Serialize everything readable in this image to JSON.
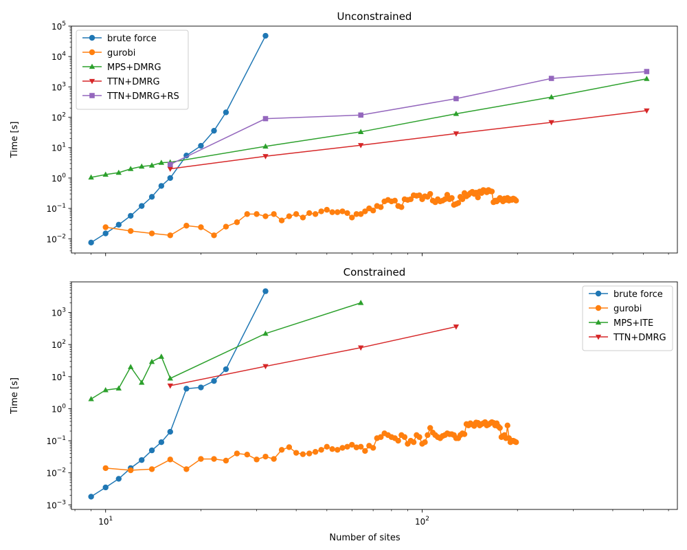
{
  "figure": {
    "xlabel": "Number of sites",
    "xscale": "log",
    "yscale": "log",
    "x_tick_labels": [
      {
        "value": 10,
        "label": "10",
        "sup": "1"
      },
      {
        "value": 100,
        "label": "10",
        "sup": "2"
      }
    ]
  },
  "chart_data": [
    {
      "type": "line",
      "title": "Unconstrained",
      "xlabel": "",
      "ylabel": "Time [s]",
      "xlim": [
        7.8,
        640
      ],
      "ylim": [
        0.0034,
        100000
      ],
      "yscale": "log",
      "legend": "top-left",
      "y_tick_labels": [
        {
          "value": 0.01,
          "label": "10",
          "sup": "−2"
        },
        {
          "value": 0.1,
          "label": "10",
          "sup": "−1"
        },
        {
          "value": 1,
          "label": "10",
          "sup": "0"
        },
        {
          "value": 10,
          "label": "10",
          "sup": "1"
        },
        {
          "value": 100,
          "label": "10",
          "sup": "2"
        },
        {
          "value": 1000,
          "label": "10",
          "sup": "3"
        },
        {
          "value": 10000,
          "label": "10",
          "sup": "4"
        },
        {
          "value": 100000,
          "label": "10",
          "sup": "5"
        }
      ],
      "series": [
        {
          "name": "brute force",
          "color": "#1f77b4",
          "marker": "circle",
          "x": [
            9,
            10,
            11,
            12,
            13,
            14,
            15,
            16,
            18,
            20,
            22,
            24,
            32
          ],
          "y": [
            0.0075,
            0.015,
            0.029,
            0.057,
            0.12,
            0.24,
            0.55,
            1.0,
            5.5,
            11.5,
            36,
            145,
            48000
          ]
        },
        {
          "name": "gurobi",
          "color": "#ff7f0e",
          "marker": "circle",
          "x": [
            10,
            12,
            14,
            16,
            18,
            20,
            22,
            24,
            26,
            28,
            30,
            32,
            34,
            36,
            38,
            40,
            42,
            44,
            46,
            48,
            50,
            52,
            54,
            56,
            58,
            60,
            62,
            64,
            66,
            68,
            70,
            72,
            74,
            76,
            78,
            80,
            82,
            84,
            86,
            88,
            90,
            92,
            94,
            96,
            98,
            100,
            102,
            104,
            106,
            108,
            110,
            112,
            114,
            116,
            118,
            120,
            122,
            124,
            126,
            128,
            130,
            132,
            134,
            136,
            138,
            140,
            142,
            144,
            146,
            148,
            150,
            152,
            154,
            156,
            158,
            160,
            162,
            164,
            166,
            168,
            170,
            172,
            174,
            176,
            178,
            180,
            182,
            184,
            186,
            188,
            190,
            192,
            194,
            196,
            198
          ],
          "y": [
            0.024,
            0.018,
            0.015,
            0.013,
            0.027,
            0.024,
            0.013,
            0.025,
            0.035,
            0.065,
            0.065,
            0.055,
            0.065,
            0.04,
            0.055,
            0.065,
            0.05,
            0.07,
            0.065,
            0.08,
            0.09,
            0.075,
            0.075,
            0.08,
            0.07,
            0.05,
            0.065,
            0.065,
            0.08,
            0.1,
            0.085,
            0.12,
            0.11,
            0.17,
            0.19,
            0.17,
            0.18,
            0.12,
            0.11,
            0.2,
            0.19,
            0.2,
            0.27,
            0.26,
            0.27,
            0.2,
            0.25,
            0.24,
            0.3,
            0.18,
            0.16,
            0.2,
            0.17,
            0.18,
            0.2,
            0.28,
            0.2,
            0.22,
            0.13,
            0.14,
            0.15,
            0.24,
            0.2,
            0.32,
            0.25,
            0.28,
            0.32,
            0.35,
            0.3,
            0.33,
            0.23,
            0.36,
            0.32,
            0.4,
            0.38,
            0.34,
            0.4,
            0.37,
            0.36,
            0.16,
            0.18,
            0.17,
            0.19,
            0.22,
            0.2,
            0.17,
            0.21,
            0.19,
            0.22,
            0.18,
            0.2,
            0.19,
            0.21,
            0.2,
            0.18
          ]
        },
        {
          "name": "MPS+DMRG",
          "color": "#2ca02c",
          "marker": "triangle-up",
          "x": [
            9,
            10,
            11,
            12,
            13,
            14,
            15,
            16,
            32,
            64,
            128,
            256,
            512
          ],
          "y": [
            1.05,
            1.3,
            1.5,
            2.0,
            2.4,
            2.6,
            3.2,
            3.3,
            11,
            33,
            130,
            460,
            1850
          ]
        },
        {
          "name": "TTN+DMRG",
          "color": "#d62728",
          "marker": "triangle-down",
          "x": [
            16,
            32,
            64,
            128,
            256,
            512
          ],
          "y": [
            2.0,
            5.2,
            12,
            29,
            68,
            165
          ]
        },
        {
          "name": "TTN+DMRG+RS",
          "color": "#9467bd",
          "marker": "square",
          "x": [
            16,
            32,
            64,
            128,
            256,
            512
          ],
          "y": [
            2.8,
            90,
            118,
            410,
            1900,
            3200
          ]
        }
      ]
    },
    {
      "type": "line",
      "title": "Constrained",
      "xlabel": "Number of sites",
      "ylabel": "Time [s]",
      "xlim": [
        7.8,
        640
      ],
      "ylim": [
        0.00072,
        9000
      ],
      "yscale": "log",
      "legend": "top-right",
      "y_tick_labels": [
        {
          "value": 0.001,
          "label": "10",
          "sup": "−3"
        },
        {
          "value": 0.01,
          "label": "10",
          "sup": "−2"
        },
        {
          "value": 0.1,
          "label": "10",
          "sup": "−1"
        },
        {
          "value": 1,
          "label": "10",
          "sup": "0"
        },
        {
          "value": 10,
          "label": "10",
          "sup": "1"
        },
        {
          "value": 100,
          "label": "10",
          "sup": "2"
        },
        {
          "value": 1000,
          "label": "10",
          "sup": "3"
        }
      ],
      "series": [
        {
          "name": "brute force",
          "color": "#1f77b4",
          "marker": "circle",
          "x": [
            9,
            10,
            11,
            12,
            13,
            14,
            15,
            16,
            18,
            20,
            22,
            24,
            32
          ],
          "y": [
            0.0018,
            0.0035,
            0.0065,
            0.014,
            0.025,
            0.05,
            0.09,
            0.19,
            4.2,
            4.6,
            7.3,
            17,
            4600
          ]
        },
        {
          "name": "gurobi",
          "color": "#ff7f0e",
          "marker": "circle",
          "x": [
            10,
            12,
            14,
            16,
            18,
            20,
            22,
            24,
            26,
            28,
            30,
            32,
            34,
            36,
            38,
            40,
            42,
            44,
            46,
            48,
            50,
            52,
            54,
            56,
            58,
            60,
            62,
            64,
            66,
            68,
            70,
            72,
            74,
            76,
            78,
            80,
            82,
            84,
            86,
            88,
            90,
            92,
            94,
            96,
            98,
            100,
            102,
            104,
            106,
            108,
            110,
            112,
            114,
            116,
            118,
            120,
            122,
            124,
            126,
            128,
            130,
            132,
            134,
            136,
            138,
            140,
            142,
            144,
            146,
            148,
            150,
            152,
            154,
            156,
            158,
            160,
            162,
            164,
            166,
            168,
            170,
            172,
            174,
            176,
            178,
            180,
            182,
            184,
            186,
            188,
            190,
            192,
            194,
            196,
            198
          ],
          "y": [
            0.014,
            0.012,
            0.013,
            0.026,
            0.013,
            0.027,
            0.027,
            0.024,
            0.04,
            0.037,
            0.026,
            0.032,
            0.027,
            0.052,
            0.063,
            0.042,
            0.038,
            0.04,
            0.045,
            0.052,
            0.065,
            0.055,
            0.052,
            0.06,
            0.065,
            0.075,
            0.062,
            0.065,
            0.048,
            0.07,
            0.06,
            0.12,
            0.13,
            0.17,
            0.15,
            0.13,
            0.12,
            0.1,
            0.15,
            0.13,
            0.08,
            0.1,
            0.09,
            0.15,
            0.13,
            0.08,
            0.09,
            0.15,
            0.25,
            0.18,
            0.15,
            0.13,
            0.12,
            0.14,
            0.15,
            0.17,
            0.16,
            0.16,
            0.15,
            0.12,
            0.12,
            0.15,
            0.17,
            0.16,
            0.33,
            0.3,
            0.35,
            0.32,
            0.29,
            0.37,
            0.36,
            0.3,
            0.33,
            0.35,
            0.38,
            0.3,
            0.32,
            0.35,
            0.38,
            0.36,
            0.3,
            0.35,
            0.28,
            0.25,
            0.13,
            0.14,
            0.15,
            0.12,
            0.3,
            0.12,
            0.09,
            0.1,
            0.1,
            0.095,
            0.09
          ]
        },
        {
          "name": "MPS+ITE",
          "color": "#2ca02c",
          "marker": "triangle-up",
          "x": [
            9,
            10,
            11,
            12,
            13,
            14,
            15,
            16,
            32,
            64
          ],
          "y": [
            2.0,
            3.8,
            4.3,
            20,
            6.5,
            29,
            42,
            8.8,
            220,
            2000
          ]
        },
        {
          "name": "TTN+DMRG",
          "color": "#d62728",
          "marker": "triangle-down",
          "x": [
            16,
            32,
            64,
            128
          ],
          "y": [
            5.2,
            21,
            80,
            360
          ]
        }
      ]
    }
  ]
}
